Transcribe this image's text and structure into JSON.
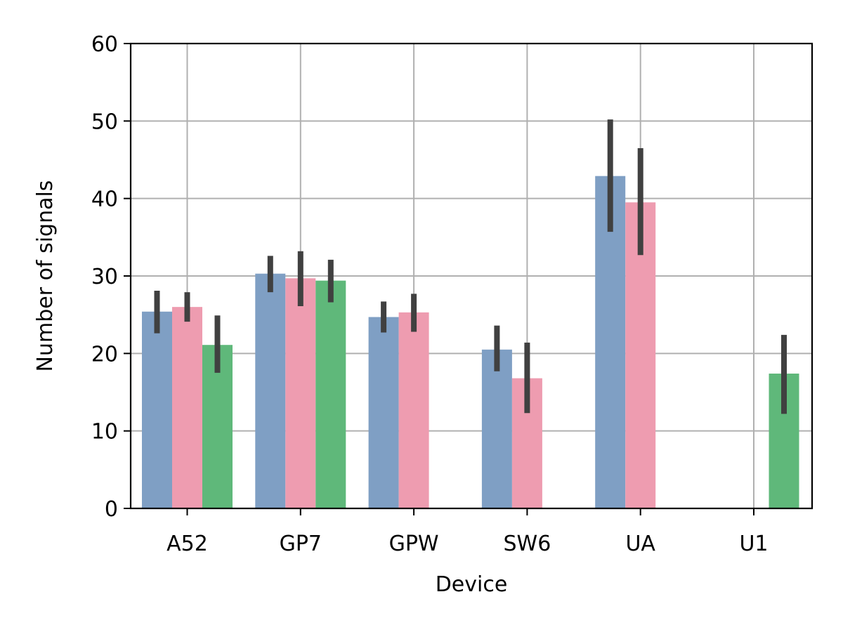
{
  "chart_data": {
    "type": "bar",
    "title": "",
    "xlabel": "Device",
    "ylabel": "Number of signals",
    "categories": [
      "A52",
      "GP7",
      "GPW",
      "SW6",
      "UA",
      "U1"
    ],
    "ylim": [
      0,
      60
    ],
    "yticks": [
      0,
      10,
      20,
      30,
      40,
      50,
      60
    ],
    "grid": true,
    "legend": "none",
    "series": [
      {
        "color": "#7f9fc4",
        "values": [
          25.4,
          30.3,
          24.7,
          20.5,
          42.9,
          null
        ],
        "error_low": [
          22.6,
          27.9,
          22.7,
          17.7,
          35.7,
          null
        ],
        "error_high": [
          28.1,
          32.6,
          26.7,
          23.6,
          50.2,
          null
        ]
      },
      {
        "color": "#ee9cb0",
        "values": [
          26.0,
          29.7,
          25.3,
          16.8,
          39.5,
          null
        ],
        "error_low": [
          24.1,
          26.1,
          22.8,
          12.3,
          32.7,
          null
        ],
        "error_high": [
          27.9,
          33.2,
          27.7,
          21.4,
          46.5,
          null
        ]
      },
      {
        "color": "#5fb87a",
        "values": [
          21.1,
          29.4,
          null,
          null,
          null,
          17.4
        ],
        "error_low": [
          17.5,
          26.6,
          null,
          null,
          null,
          12.2
        ],
        "error_high": [
          24.9,
          32.1,
          null,
          null,
          null,
          22.4
        ]
      }
    ],
    "colors": {
      "grid": "#b0b0b0",
      "axis": "#000000",
      "errorbar": "#404040"
    }
  }
}
